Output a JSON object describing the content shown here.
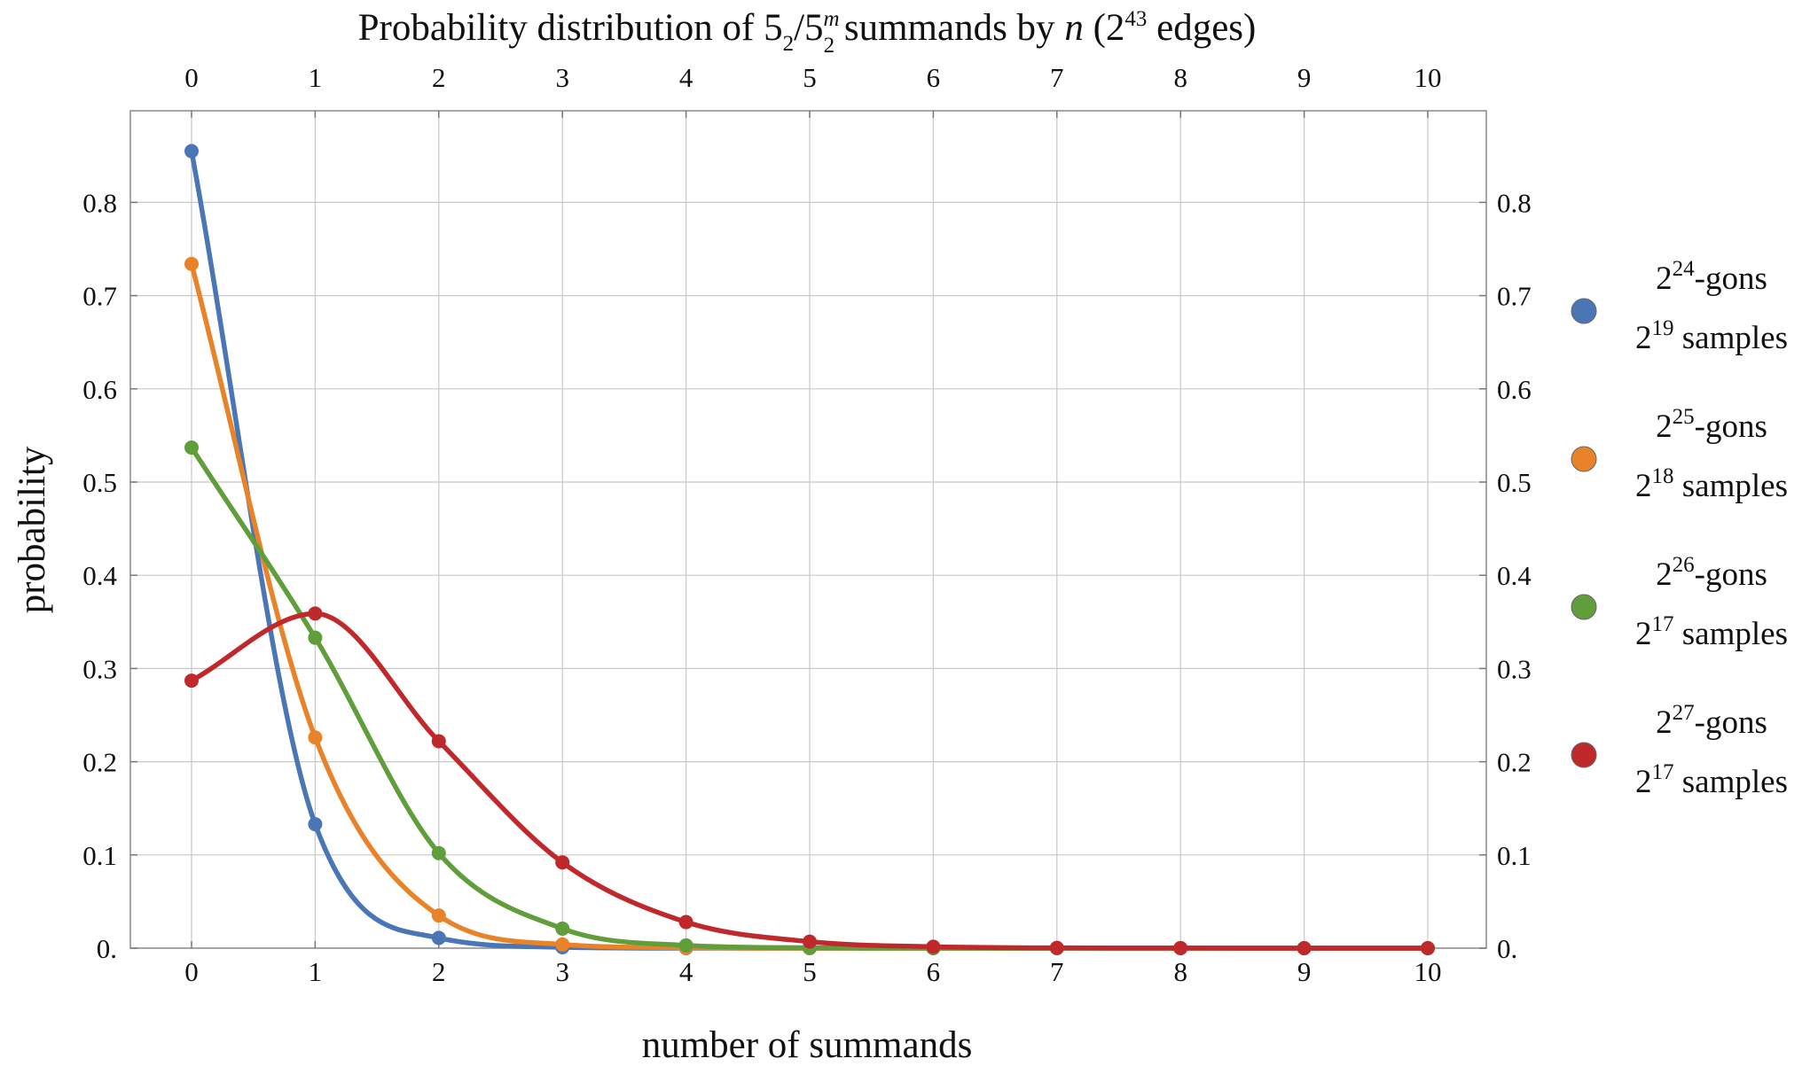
{
  "chart_data": {
    "type": "line",
    "title": {
      "prefix": "Probability distribution of 5",
      "sub1": "2",
      "slash": "/5",
      "sup_m": "m",
      "sub2": "2",
      "middle": " summands by ",
      "var_n": "n",
      "open": " (2",
      "sup_exp": "43",
      "close": " edges)"
    },
    "xlabel": "number of summands",
    "ylabel": "probability",
    "xlim": [
      -0.5,
      10.5
    ],
    "ylim": [
      0,
      0.9
    ],
    "x_ticks": [
      0,
      1,
      2,
      3,
      4,
      5,
      6,
      7,
      8,
      9,
      10
    ],
    "x_tick_labels": [
      "0",
      "1",
      "2",
      "3",
      "4",
      "5",
      "6",
      "7",
      "8",
      "9",
      "10"
    ],
    "y_ticks": [
      0,
      0.1,
      0.2,
      0.3,
      0.4,
      0.5,
      0.6,
      0.7,
      0.8
    ],
    "y_tick_labels": [
      "0.",
      "0.1",
      "0.2",
      "0.3",
      "0.4",
      "0.5",
      "0.6",
      "0.7",
      "0.8"
    ],
    "grid": true,
    "legend_position": "right",
    "x": [
      0,
      1,
      2,
      3,
      4,
      5,
      6,
      7,
      8,
      9,
      10
    ],
    "series": [
      {
        "legend_line1": {
          "base": "2",
          "exp": "24",
          "text": "-gons"
        },
        "legend_line2": {
          "base": "2",
          "exp": "19",
          "text": " samples"
        },
        "color": "#4a76b5",
        "values": [
          0.855,
          0.133,
          0.011,
          0.001,
          0.0,
          0.0,
          0.0,
          0.0,
          0.0,
          0.0,
          0.0
        ]
      },
      {
        "legend_line1": {
          "base": "2",
          "exp": "25",
          "text": "-gons"
        },
        "legend_line2": {
          "base": "2",
          "exp": "18",
          "text": " samples"
        },
        "color": "#e8832a",
        "values": [
          0.734,
          0.226,
          0.035,
          0.004,
          0.0005,
          0.0,
          0.0,
          0.0,
          0.0,
          0.0,
          0.0
        ]
      },
      {
        "legend_line1": {
          "base": "2",
          "exp": "26",
          "text": "-gons"
        },
        "legend_line2": {
          "base": "2",
          "exp": "17",
          "text": " samples"
        },
        "color": "#5f9e3a",
        "values": [
          0.537,
          0.333,
          0.102,
          0.021,
          0.003,
          0.0004,
          0.0,
          0.0,
          0.0,
          0.0,
          0.0
        ]
      },
      {
        "legend_line1": {
          "base": "2",
          "exp": "27",
          "text": "-gons"
        },
        "legend_line2": {
          "base": "2",
          "exp": "17",
          "text": " samples"
        },
        "color": "#c0292c",
        "values": [
          0.287,
          0.359,
          0.222,
          0.092,
          0.028,
          0.007,
          0.0015,
          0.0003,
          0.0001,
          0.0,
          0.0
        ]
      }
    ]
  }
}
